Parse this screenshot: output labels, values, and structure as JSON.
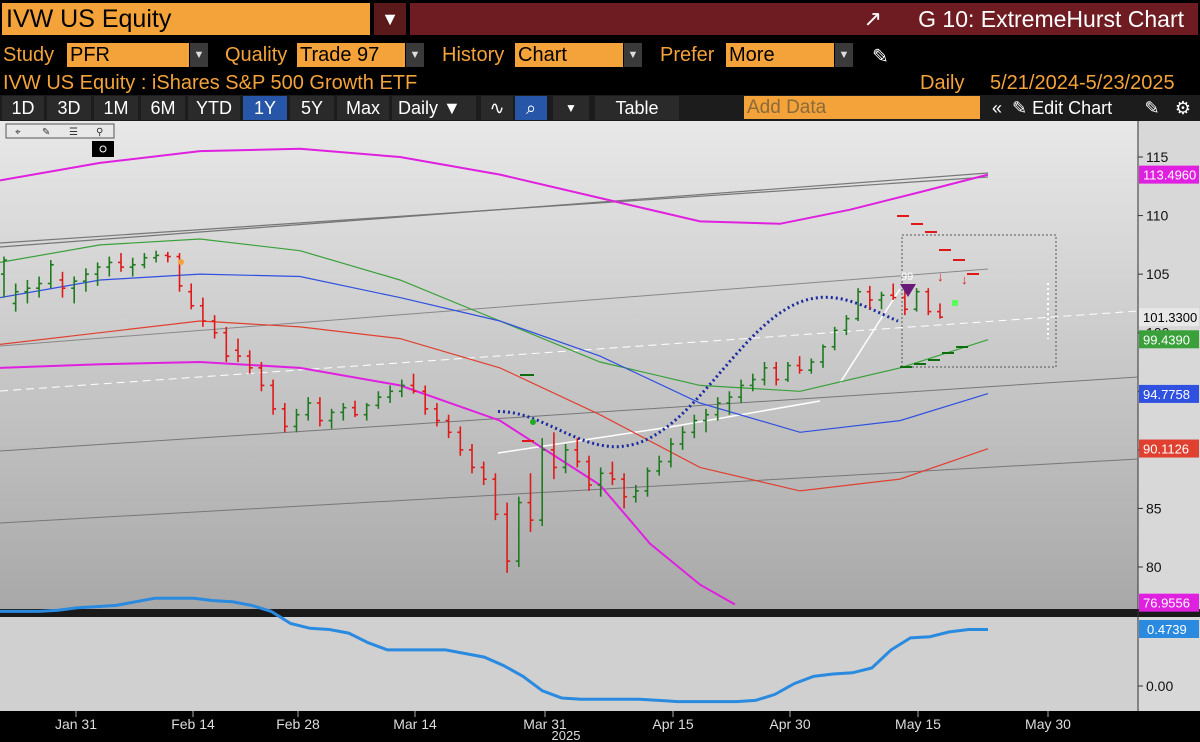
{
  "header": {
    "ticker": "IVW US Equity",
    "title": "G 10: ExtremeHurst Chart"
  },
  "study_row": {
    "study_label": "Study",
    "study_value": "PFR Extreme",
    "quality_label": "Quality",
    "quality_value": "Trade 97",
    "history_label": "History",
    "history_value": "Chart",
    "prefer_label": "Prefer",
    "prefer_value": "More"
  },
  "desc_row": {
    "security": "IVW US Equity : iShares S&P 500 Growth ETF",
    "frequency": "Daily",
    "date_range": "5/21/2024-5/23/2025"
  },
  "toolbar": {
    "periods": [
      "1D",
      "3D",
      "1M",
      "6M",
      "YTD",
      "1Y",
      "5Y",
      "Max"
    ],
    "selected_period": "1Y",
    "frequency": "Daily",
    "table_label": "Table",
    "add_data_placeholder": "Add Data",
    "edit_chart_label": "Edit Chart"
  },
  "colors": {
    "accent": "#f4a33a",
    "title_bar": "#6e1c22",
    "selected": "#2756a8",
    "plot_bg_top": "#e6e6e6",
    "plot_bg_bottom": "#a9a9a9",
    "up_bar": "#1f7a1f",
    "down_bar": "#e01818",
    "band_outer": "#e020e0",
    "band_green": "#3aa03a",
    "band_blue": "#3050e0",
    "band_red": "#e04030",
    "cycle": "#1a2aa0",
    "indicator": "#2a8ae0"
  },
  "chart_data": [
    {
      "type": "ohlc",
      "x_ticks": [
        "Jan 31",
        "Feb 14",
        "Feb 28",
        "Mar 14",
        "Mar 31",
        "Apr 15",
        "Apr 30",
        "May 15",
        "May 30"
      ],
      "x_year_label": "2025",
      "y_ticks": [
        80,
        85,
        90,
        95,
        100,
        105,
        110,
        115
      ],
      "ylim": [
        76.5,
        117.5
      ],
      "last_price_labels": [
        "113.4960",
        "101.3300",
        "99.4390",
        "94.7758",
        "90.1126",
        "76.9556"
      ],
      "signal_label": "99",
      "price_bars": [
        {
          "o": 105.0,
          "h": 106.5,
          "l": 103.0,
          "c": 106.2
        },
        {
          "o": 102.5,
          "h": 104.2,
          "l": 101.8,
          "c": 103.5
        },
        {
          "o": 103.5,
          "h": 104.5,
          "l": 102.5,
          "c": 103.8
        },
        {
          "o": 103.8,
          "h": 104.8,
          "l": 103.0,
          "c": 104.2
        },
        {
          "o": 104.2,
          "h": 106.2,
          "l": 103.8,
          "c": 105.8
        },
        {
          "o": 104.5,
          "h": 105.2,
          "l": 103.0,
          "c": 103.8
        },
        {
          "o": 103.8,
          "h": 104.8,
          "l": 102.5,
          "c": 104.4
        },
        {
          "o": 104.4,
          "h": 105.5,
          "l": 103.5,
          "c": 105.0
        },
        {
          "o": 105.0,
          "h": 106.0,
          "l": 104.0,
          "c": 105.6
        },
        {
          "o": 105.6,
          "h": 106.5,
          "l": 104.8,
          "c": 106.0
        },
        {
          "o": 106.0,
          "h": 106.8,
          "l": 105.2,
          "c": 105.6
        },
        {
          "o": 105.6,
          "h": 106.4,
          "l": 104.8,
          "c": 105.8
        },
        {
          "o": 105.8,
          "h": 106.8,
          "l": 105.5,
          "c": 106.4
        },
        {
          "o": 106.4,
          "h": 107.0,
          "l": 106.0,
          "c": 106.6
        },
        {
          "o": 106.6,
          "h": 106.9,
          "l": 106.0,
          "c": 106.5
        },
        {
          "o": 106.5,
          "h": 106.8,
          "l": 103.5,
          "c": 104.0
        },
        {
          "o": 103.5,
          "h": 104.2,
          "l": 102.0,
          "c": 102.3
        },
        {
          "o": 102.3,
          "h": 103.0,
          "l": 100.5,
          "c": 101.0
        },
        {
          "o": 101.0,
          "h": 101.5,
          "l": 99.5,
          "c": 100.0
        },
        {
          "o": 100.0,
          "h": 100.5,
          "l": 97.5,
          "c": 98.0
        },
        {
          "o": 98.5,
          "h": 99.5,
          "l": 97.5,
          "c": 98.0
        },
        {
          "o": 98.0,
          "h": 98.5,
          "l": 96.5,
          "c": 97.0
        },
        {
          "o": 97.0,
          "h": 97.5,
          "l": 95.0,
          "c": 95.5
        },
        {
          "o": 95.5,
          "h": 96.0,
          "l": 93.0,
          "c": 93.5
        },
        {
          "o": 93.5,
          "h": 94.0,
          "l": 91.5,
          "c": 92.0
        },
        {
          "o": 92.0,
          "h": 93.5,
          "l": 91.5,
          "c": 93.0
        },
        {
          "o": 93.0,
          "h": 94.5,
          "l": 92.5,
          "c": 94.0
        },
        {
          "o": 94.0,
          "h": 94.5,
          "l": 92.0,
          "c": 92.5
        },
        {
          "o": 92.5,
          "h": 93.5,
          "l": 91.8,
          "c": 93.2
        },
        {
          "o": 93.2,
          "h": 94.0,
          "l": 92.5,
          "c": 93.6
        },
        {
          "o": 93.6,
          "h": 94.2,
          "l": 92.8,
          "c": 93.0
        },
        {
          "o": 93.0,
          "h": 94.0,
          "l": 92.5,
          "c": 93.8
        },
        {
          "o": 93.8,
          "h": 95.0,
          "l": 93.5,
          "c": 94.5
        },
        {
          "o": 94.5,
          "h": 95.5,
          "l": 94.0,
          "c": 95.0
        },
        {
          "o": 95.0,
          "h": 96.0,
          "l": 94.5,
          "c": 95.5
        },
        {
          "o": 95.5,
          "h": 96.5,
          "l": 94.8,
          "c": 95.0
        },
        {
          "o": 95.0,
          "h": 95.5,
          "l": 93.0,
          "c": 93.5
        },
        {
          "o": 93.5,
          "h": 94.0,
          "l": 92.0,
          "c": 92.5
        },
        {
          "o": 92.5,
          "h": 93.0,
          "l": 91.0,
          "c": 91.5
        },
        {
          "o": 91.5,
          "h": 92.0,
          "l": 89.5,
          "c": 90.0
        },
        {
          "o": 90.0,
          "h": 90.5,
          "l": 88.0,
          "c": 88.5
        },
        {
          "o": 88.5,
          "h": 89.0,
          "l": 87.0,
          "c": 87.5
        },
        {
          "o": 87.5,
          "h": 88.0,
          "l": 84.0,
          "c": 84.5
        },
        {
          "o": 84.5,
          "h": 85.5,
          "l": 79.5,
          "c": 80.5
        },
        {
          "o": 80.5,
          "h": 86.0,
          "l": 80.0,
          "c": 85.5
        },
        {
          "o": 85.5,
          "h": 88.0,
          "l": 83.0,
          "c": 84.0
        },
        {
          "o": 84.0,
          "h": 91.0,
          "l": 83.5,
          "c": 90.0
        },
        {
          "o": 90.0,
          "h": 91.5,
          "l": 87.5,
          "c": 88.5
        },
        {
          "o": 88.5,
          "h": 90.5,
          "l": 88.0,
          "c": 90.0
        },
        {
          "o": 90.0,
          "h": 91.0,
          "l": 88.5,
          "c": 89.0
        },
        {
          "o": 89.0,
          "h": 89.5,
          "l": 86.5,
          "c": 87.0
        },
        {
          "o": 87.0,
          "h": 88.5,
          "l": 86.0,
          "c": 88.0
        },
        {
          "o": 88.0,
          "h": 89.0,
          "l": 87.0,
          "c": 87.5
        },
        {
          "o": 87.5,
          "h": 88.0,
          "l": 85.0,
          "c": 86.0
        },
        {
          "o": 86.0,
          "h": 87.0,
          "l": 85.5,
          "c": 86.5
        },
        {
          "o": 86.5,
          "h": 88.5,
          "l": 86.0,
          "c": 88.2
        },
        {
          "o": 88.2,
          "h": 89.5,
          "l": 87.8,
          "c": 89.0
        },
        {
          "o": 89.0,
          "h": 91.0,
          "l": 88.5,
          "c": 90.5
        },
        {
          "o": 90.5,
          "h": 92.0,
          "l": 90.0,
          "c": 91.5
        },
        {
          "o": 91.5,
          "h": 93.0,
          "l": 91.0,
          "c": 92.5
        },
        {
          "o": 92.5,
          "h": 93.5,
          "l": 91.5,
          "c": 93.0
        },
        {
          "o": 93.0,
          "h": 94.5,
          "l": 92.5,
          "c": 94.0
        },
        {
          "o": 94.0,
          "h": 95.0,
          "l": 93.0,
          "c": 94.5
        },
        {
          "o": 94.5,
          "h": 96.0,
          "l": 94.0,
          "c": 95.5
        },
        {
          "o": 95.5,
          "h": 96.5,
          "l": 95.0,
          "c": 96.0
        },
        {
          "o": 96.0,
          "h": 97.5,
          "l": 95.5,
          "c": 97.0
        },
        {
          "o": 97.0,
          "h": 97.5,
          "l": 95.5,
          "c": 96.0
        },
        {
          "o": 96.0,
          "h": 97.5,
          "l": 95.8,
          "c": 97.2
        },
        {
          "o": 97.2,
          "h": 98.0,
          "l": 96.5,
          "c": 96.8
        },
        {
          "o": 96.8,
          "h": 97.8,
          "l": 96.5,
          "c": 97.5
        },
        {
          "o": 97.5,
          "h": 99.0,
          "l": 97.0,
          "c": 98.8
        },
        {
          "o": 98.8,
          "h": 100.5,
          "l": 98.5,
          "c": 100.2
        },
        {
          "o": 100.2,
          "h": 101.5,
          "l": 99.8,
          "c": 101.2
        },
        {
          "o": 101.2,
          "h": 103.8,
          "l": 101.0,
          "c": 103.5
        },
        {
          "o": 103.5,
          "h": 104.0,
          "l": 102.0,
          "c": 102.8
        },
        {
          "o": 102.8,
          "h": 103.5,
          "l": 102.0,
          "c": 103.2
        },
        {
          "o": 103.2,
          "h": 104.2,
          "l": 102.8,
          "c": 103.0
        },
        {
          "o": 103.0,
          "h": 104.0,
          "l": 101.5,
          "c": 102.0
        },
        {
          "o": 102.0,
          "h": 103.8,
          "l": 101.8,
          "c": 103.5
        },
        {
          "o": 103.5,
          "h": 103.8,
          "l": 101.5,
          "c": 101.8
        },
        {
          "o": 101.8,
          "h": 102.5,
          "l": 101.2,
          "c": 101.33
        }
      ]
    },
    {
      "type": "line",
      "y_ticks": [
        0.0
      ],
      "ylim": [
        -0.25,
        0.85
      ],
      "last_value_label": "0.4739",
      "values": [
        0.62,
        0.62,
        0.62,
        0.63,
        0.65,
        0.66,
        0.67,
        0.7,
        0.73,
        0.73,
        0.73,
        0.71,
        0.7,
        0.67,
        0.62,
        0.52,
        0.48,
        0.47,
        0.44,
        0.36,
        0.3,
        0.3,
        0.3,
        0.3,
        0.27,
        0.24,
        0.17,
        0.08,
        -0.04,
        -0.1,
        -0.11,
        -0.11,
        -0.11,
        -0.11,
        -0.12,
        -0.13,
        -0.13,
        -0.13,
        -0.13,
        -0.12,
        -0.07,
        0.02,
        0.08,
        0.1,
        0.11,
        0.15,
        0.3,
        0.4,
        0.41,
        0.45,
        0.47,
        0.47
      ]
    }
  ]
}
